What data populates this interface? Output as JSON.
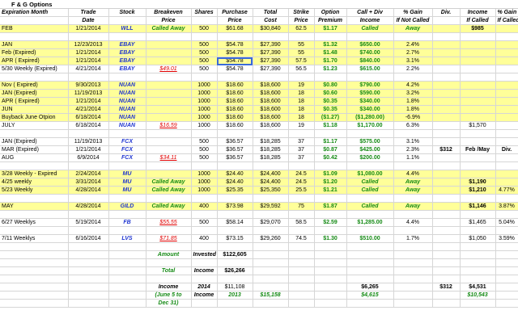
{
  "sheet_title": "F & G Options",
  "headers": {
    "top": [
      "Expiration Month",
      "Trade",
      "Stock",
      "Breakeven",
      "Shares",
      "Purchase",
      "Total",
      "Strike",
      "Option",
      "Call + Div",
      "% Gain",
      "Div.",
      "Income",
      "% Gain"
    ],
    "bottom": [
      "",
      "Date",
      "",
      "Price",
      "",
      "Price",
      "Cost",
      "Price",
      "Premium",
      "Income",
      "If Not Called",
      "",
      "If Called",
      "If Called"
    ]
  },
  "rows": [
    {
      "y": true,
      "c": [
        "FEB",
        "1/21/2014",
        "WLL",
        "Called Away",
        "500",
        "$61.68",
        "$30,840",
        "62.5",
        "$1.17",
        "Called",
        "Away",
        "",
        "$985",
        ""
      ]
    },
    {
      "y": false,
      "c": [
        "",
        "",
        "",
        "",
        "",
        "",
        "",
        "",
        "",
        "",
        "",
        "",
        "",
        ""
      ]
    },
    {
      "y": true,
      "c": [
        "JAN",
        "12/23/2013",
        "EBAY",
        "",
        "500",
        "$54.78",
        "$27,390",
        "55",
        "$1.32",
        "$650.00",
        "2.4%",
        "",
        "",
        ""
      ]
    },
    {
      "y": true,
      "c": [
        "Feb (Expired)",
        "1/21/2014",
        "EBAY",
        "",
        "500",
        "$54.78",
        "$27,390",
        "55",
        "$1.48",
        "$740.00",
        "2.7%",
        "",
        "",
        ""
      ]
    },
    {
      "y": true,
      "c": [
        "APR ( Expired)",
        "1/21/2014",
        "EBAY",
        "",
        "500",
        "$54.78",
        "$27,390",
        "57.5",
        "$1.70",
        "$840.00",
        "3.1%",
        "",
        "",
        ""
      ]
    },
    {
      "y": false,
      "c": [
        "5/30 Weekly (Expired)",
        "4/21/2014",
        "EBAY",
        "$49.01",
        "500",
        "$54.78",
        "$27,390",
        "56.5",
        "$1.23",
        "$615.00",
        "2.2%",
        "",
        "",
        ""
      ]
    },
    {
      "y": false,
      "c": [
        "",
        "",
        "",
        "",
        "",
        "",
        "",
        "",
        "",
        "",
        "",
        "",
        "",
        ""
      ]
    },
    {
      "y": true,
      "c": [
        "Nov ( Expired)",
        "9/30/2013",
        "NUAN",
        "",
        "1000",
        "$18.60",
        "$18,600",
        "19",
        "$0.80",
        "$790.00",
        "4.2%",
        "",
        "",
        ""
      ]
    },
    {
      "y": true,
      "c": [
        "JAN (Expired)",
        "11/19/2013",
        "NUAN",
        "",
        "1000",
        "$18.60",
        "$18,600",
        "18",
        "$0.60",
        "$590.00",
        "3.2%",
        "",
        "",
        ""
      ]
    },
    {
      "y": true,
      "c": [
        "APR ( Expired)",
        "1/21/2014",
        "NUAN",
        "",
        "1000",
        "$18.60",
        "$18,600",
        "18",
        "$0.35",
        "$340.00",
        "1.8%",
        "",
        "",
        ""
      ]
    },
    {
      "y": true,
      "c": [
        "JUN",
        "4/21/2014",
        "NUAN",
        "",
        "1000",
        "$18.60",
        "$18,600",
        "18",
        "$0.35",
        "$340.00",
        "1.8%",
        "",
        "",
        ""
      ]
    },
    {
      "y": true,
      "c": [
        "Buyback June Otpion",
        "6/18/2014",
        "NUAN",
        "",
        "1000",
        "$18.60",
        "$18,600",
        "18",
        "($1.27)",
        "($1,280.00)",
        "-6.9%",
        "",
        "",
        ""
      ]
    },
    {
      "y": false,
      "c": [
        "JULY",
        "6/18/2014",
        "NUAN",
        "$16.59",
        "1000",
        "$18.60",
        "$18,600",
        "19",
        "$1.18",
        "$1,170.00",
        "6.3%",
        "",
        "$1,570",
        ""
      ]
    },
    {
      "y": false,
      "c": [
        "",
        "",
        "",
        "",
        "",
        "",
        "",
        "",
        "",
        "",
        "",
        "",
        "",
        ""
      ]
    },
    {
      "y": false,
      "c": [
        "JAN (Expired)",
        "11/19/2013",
        "FCX",
        "",
        "500",
        "$36.57",
        "$18,285",
        "37",
        "$1.17",
        "$575.00",
        "3.1%",
        "",
        "",
        ""
      ]
    },
    {
      "y": false,
      "c": [
        "MAR (Expired)",
        "1/21/2014",
        "FCX",
        "",
        "500",
        "$36.57",
        "$18,285",
        "37",
        "$0.87",
        "$425.00",
        "2.3%",
        "$312",
        "Feb /May",
        "Div."
      ]
    },
    {
      "y": false,
      "c": [
        "AUG",
        "6/9/2014",
        "FCX",
        "$34.11",
        "500",
        "$36.57",
        "$18,285",
        "37",
        "$0.42",
        "$200.00",
        "1.1%",
        "",
        "",
        ""
      ]
    },
    {
      "y": false,
      "c": [
        "",
        "",
        "",
        "",
        "",
        "",
        "",
        "",
        "",
        "",
        "",
        "",
        "",
        ""
      ]
    },
    {
      "y": true,
      "c": [
        "3/28 Weekly - Expired",
        "2/24/2014",
        "MU",
        "",
        "1000",
        "$24.40",
        "$24,400",
        "24.5",
        "$1.09",
        "$1,080.00",
        "4.4%",
        "",
        "",
        ""
      ]
    },
    {
      "y": true,
      "c": [
        "4/25 weekly",
        "3/31/2014",
        "MU",
        "Called Away",
        "1000",
        "$24.40",
        "$24,400",
        "24.5",
        "$1.20",
        "Called",
        "Away",
        "",
        "$1,190",
        ""
      ]
    },
    {
      "y": true,
      "c": [
        "5/23 Weekly",
        "4/28/2014",
        "MU",
        "Called Away",
        "1000",
        "$25.35",
        "$25,350",
        "25.5",
        "$1.21",
        "Called",
        "Away",
        "",
        "$1,210",
        "4.77%"
      ]
    },
    {
      "y": false,
      "c": [
        "",
        "",
        "",
        "",
        "",
        "",
        "",
        "",
        "",
        "",
        "",
        "",
        "",
        ""
      ]
    },
    {
      "y": true,
      "c": [
        "MAY",
        "4/28/2014",
        "GILD",
        "Called Away",
        "400",
        "$73.98",
        "$29,592",
        "75",
        "$1.87",
        "Called",
        "Away",
        "",
        "$1,146",
        "3.87%"
      ]
    },
    {
      "y": false,
      "c": [
        "",
        "",
        "",
        "",
        "",
        "",
        "",
        "",
        "",
        "",
        "",
        "",
        "",
        ""
      ]
    },
    {
      "y": false,
      "c": [
        "6/27 Weeklys",
        "5/19/2014",
        "FB",
        "$55.55",
        "500",
        "$58.14",
        "$29,070",
        "58.5",
        "$2.59",
        "$1,285.00",
        "4.4%",
        "",
        "$1,465",
        "5.04%"
      ]
    },
    {
      "y": false,
      "c": [
        "",
        "",
        "",
        "",
        "",
        "",
        "",
        "",
        "",
        "",
        "",
        "",
        "",
        ""
      ]
    },
    {
      "y": false,
      "c": [
        "7/11 Weeklys",
        "6/16/2014",
        "LVS",
        "$71.85",
        "400",
        "$73.15",
        "$29,260",
        "74.5",
        "$1.30",
        "$510.00",
        "1.7%",
        "",
        "$1,050",
        "3.59%"
      ]
    },
    {
      "y": false,
      "c": [
        "",
        "",
        "",
        "",
        "",
        "",
        "",
        "",
        "",
        "",
        "",
        "",
        "",
        ""
      ]
    },
    {
      "y": false,
      "c": [
        "",
        "",
        "",
        "Amount",
        "Invested",
        "$122,605",
        "",
        "",
        "",
        "",
        "",
        "",
        "",
        ""
      ]
    },
    {
      "y": false,
      "c": [
        "",
        "",
        "",
        "",
        "",
        "",
        "",
        "",
        "",
        "",
        "",
        "",
        "",
        ""
      ]
    },
    {
      "y": false,
      "c": [
        "",
        "",
        "",
        "Total",
        "Income",
        "$26,266",
        "",
        "",
        "",
        "",
        "",
        "",
        "",
        ""
      ]
    },
    {
      "y": false,
      "c": [
        "",
        "",
        "",
        "",
        "",
        "",
        "",
        "",
        "",
        "",
        "",
        "",
        "",
        ""
      ]
    },
    {
      "y": false,
      "c": [
        "",
        "",
        "",
        "Income",
        "2014",
        "$11,108",
        "",
        "",
        "",
        "$6,265",
        "",
        "$312",
        "$4,531",
        ""
      ]
    },
    {
      "y": false,
      "c": [
        "",
        "",
        "",
        "(June 5 to",
        "Income",
        "2013",
        "$15,158",
        "",
        "",
        "$4,615",
        "",
        "",
        "$10,543",
        ""
      ]
    },
    {
      "y": false,
      "c": [
        "",
        "",
        "",
        "Dec 31)",
        "",
        "",
        "",
        "",
        "",
        "",
        "",
        "",
        "",
        ""
      ]
    }
  ],
  "colors": {
    "highlight": "#ffff99",
    "blue_text": "#1f35d0",
    "green_text": "#158a15",
    "red_text": "#e00000",
    "selection": "#3a6ad8"
  },
  "selected_cell": "4:5"
}
